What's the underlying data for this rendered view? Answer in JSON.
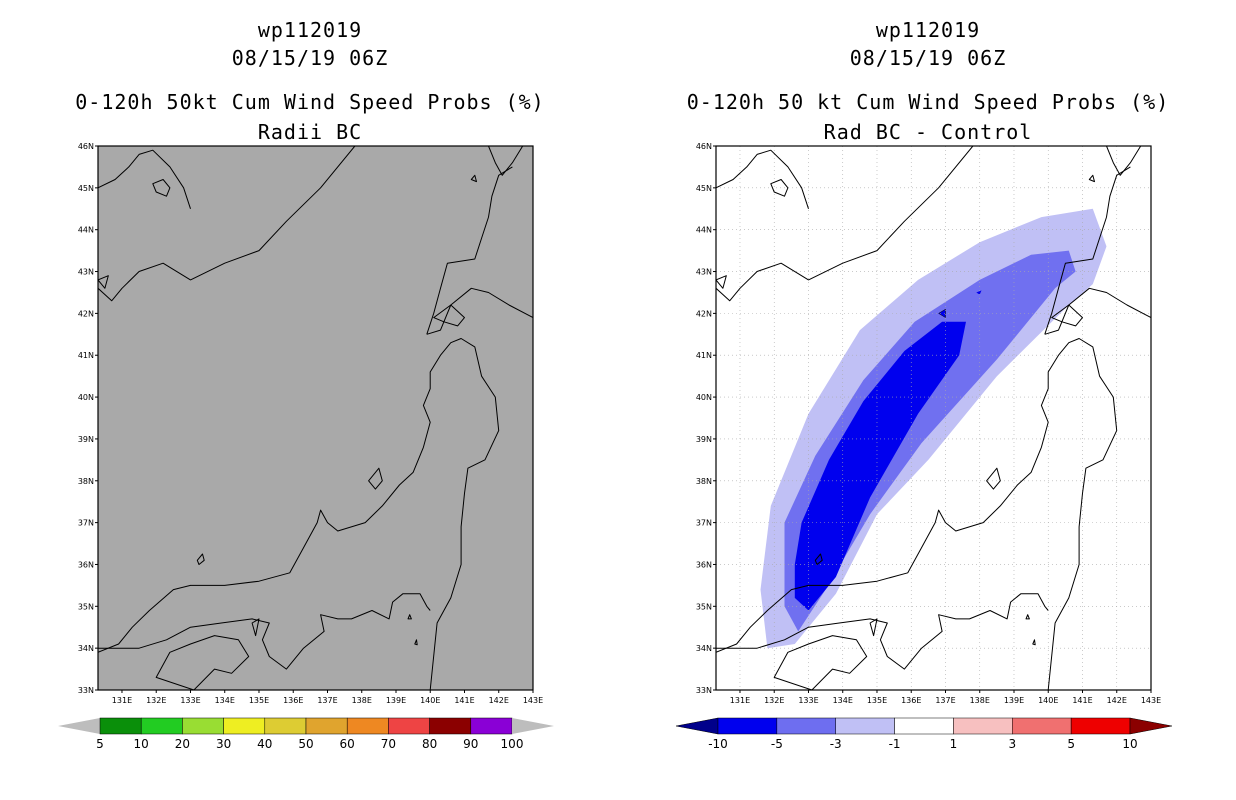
{
  "panels": [
    {
      "id": "left",
      "storm_id": "wp112019",
      "datetime": "08/15/19 06Z",
      "product": "0-120h 50kt Cum Wind Speed Probs (%)",
      "subtitle": "Radii BC",
      "background": "#a9a9a9",
      "colorbar": {
        "colors": [
          "#bdbdbd",
          "#0a8f0a",
          "#22cc22",
          "#99dd33",
          "#eeee22",
          "#ddcc33",
          "#e0a42e",
          "#ee8822",
          "#ee4444",
          "#8b0000",
          "#8a00d6",
          "#bdbdbd"
        ],
        "labels": [
          "5",
          "10",
          "20",
          "30",
          "40",
          "50",
          "60",
          "70",
          "80",
          "90",
          "100"
        ]
      }
    },
    {
      "id": "right",
      "storm_id": "wp112019",
      "datetime": "08/15/19 06Z",
      "product": "0-120h 50 kt Cum Wind Speed Probs (%)",
      "subtitle": "Rad BC - Control",
      "background": "#ffffff",
      "colorbar": {
        "colors": [
          "#00008b",
          "#0000ee",
          "#6e6ef0",
          "#c0c0f5",
          "#ffffff",
          "#f7c0c0",
          "#f07070",
          "#ee0000",
          "#8b0000"
        ],
        "labels": [
          "-10",
          "-5",
          "-3",
          "-1",
          "1",
          "3",
          "5",
          "10"
        ]
      },
      "shading": [
        {
          "level": "-1 to -3",
          "color": "#c0c0f5"
        },
        {
          "level": "-3 to -5",
          "color": "#7070f0"
        },
        {
          "level": "-5 to -10",
          "color": "#0000ee"
        }
      ]
    }
  ],
  "axes": {
    "lat_labels": [
      "46N",
      "45N",
      "44N",
      "43N",
      "42N",
      "41N",
      "40N",
      "39N",
      "38N",
      "37N",
      "36N",
      "35N",
      "34N",
      "33N"
    ],
    "lon_labels": [
      "131E",
      "132E",
      "133E",
      "134E",
      "135E",
      "136E",
      "137E",
      "138E",
      "139E",
      "140E",
      "141E",
      "142E",
      "143E"
    ]
  }
}
